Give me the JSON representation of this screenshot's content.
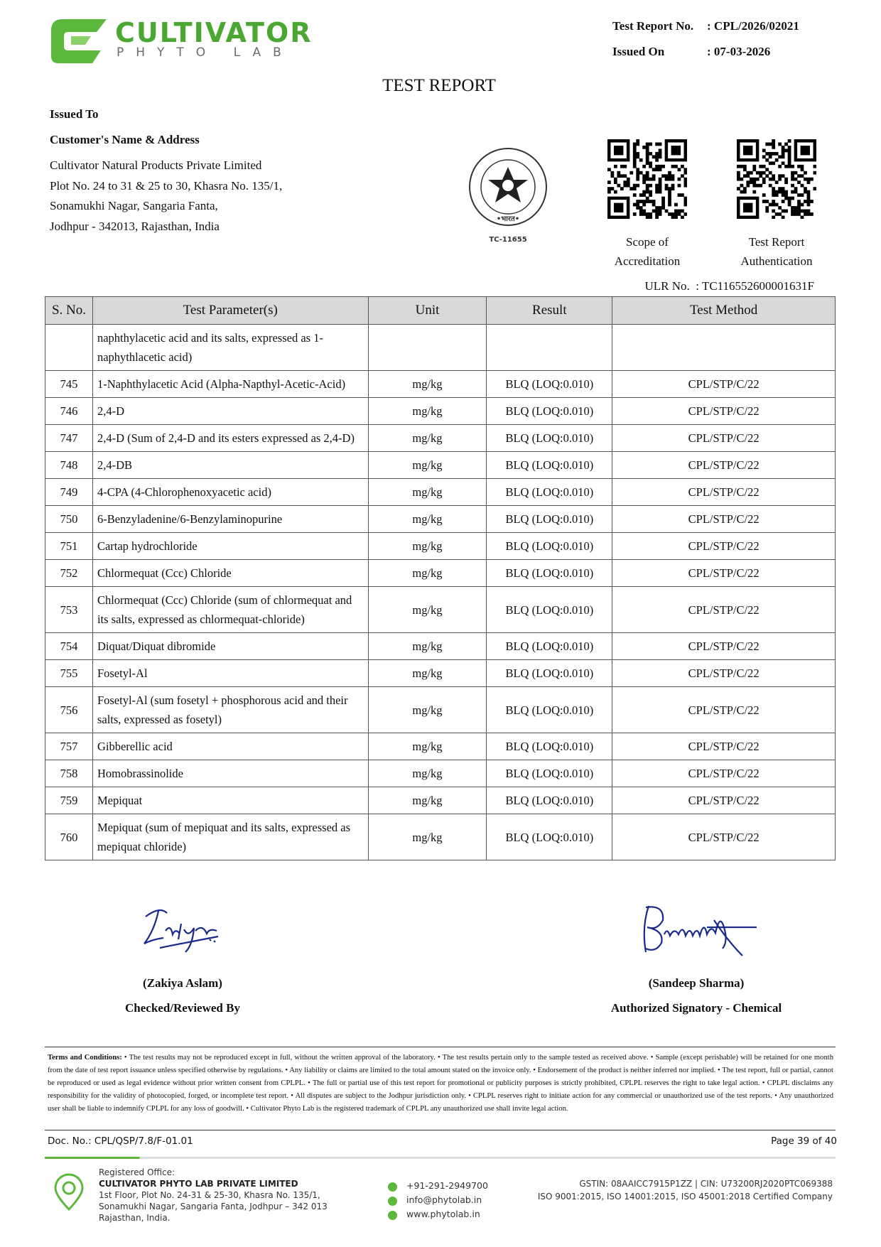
{
  "header": {
    "logo_main": "CULTIVATOR",
    "logo_sub": "PHYTO LAB",
    "report_no_label": "Test Report No.",
    "report_no": ": CPL/2026/02021",
    "issued_on_label": "Issued On",
    "issued_on": ": 07-03-2026"
  },
  "title": "TEST REPORT",
  "issued_to": {
    "label": "Issued To",
    "customer_label": "Customer's Name & Address",
    "lines": [
      "Cultivator Natural Products Private Limited",
      "Plot No. 24 to 31 & 25 to 30, Khasra No. 135/1,",
      "Sonamukhi Nagar, Sangaria Fanta,",
      "Jodhpur - 342013, Rajasthan, India"
    ]
  },
  "accreditation": {
    "emblem_code": "TC-11655",
    "emblem_word": "•भारत•",
    "qr_labels": [
      [
        "Scope of",
        "Accreditation"
      ],
      [
        "Test Report",
        "Authentication"
      ]
    ],
    "ulr": "ULR No.  : TC116552600001631F"
  },
  "table": {
    "headers": [
      "S. No.",
      "Test Parameter(s)",
      "Unit",
      "Result",
      "Test Method"
    ],
    "rows": [
      [
        null,
        "naphthylacetic acid and its salts, expressed as 1-naphythlacetic acid)",
        null,
        null,
        null
      ],
      [
        "745",
        "1-Naphthylacetic Acid (Alpha-Napthyl-Acetic-Acid)",
        "mg/kg",
        "BLQ (LOQ:0.010)",
        "CPL/STP/C/22"
      ],
      [
        "746",
        "2,4-D",
        "mg/kg",
        "BLQ (LOQ:0.010)",
        "CPL/STP/C/22"
      ],
      [
        "747",
        "2,4-D (Sum of 2,4-D and its esters expressed as 2,4-D)",
        "mg/kg",
        "BLQ (LOQ:0.010)",
        "CPL/STP/C/22"
      ],
      [
        "748",
        "2,4-DB",
        "mg/kg",
        "BLQ (LOQ:0.010)",
        "CPL/STP/C/22"
      ],
      [
        "749",
        "4-CPA (4-Chlorophenoxyacetic acid)",
        "mg/kg",
        "BLQ (LOQ:0.010)",
        "CPL/STP/C/22"
      ],
      [
        "750",
        "6-Benzyladenine/6-Benzylaminopurine",
        "mg/kg",
        "BLQ (LOQ:0.010)",
        "CPL/STP/C/22"
      ],
      [
        "751",
        "Cartap hydrochloride",
        "mg/kg",
        "BLQ (LOQ:0.010)",
        "CPL/STP/C/22"
      ],
      [
        "752",
        "Chlormequat (Ccc) Chloride",
        "mg/kg",
        "BLQ (LOQ:0.010)",
        "CPL/STP/C/22"
      ],
      [
        "753",
        "Chlormequat (Ccc) Chloride (sum of chlormequat and its salts, expressed as chlormequat-chloride)",
        "mg/kg",
        "BLQ (LOQ:0.010)",
        "CPL/STP/C/22"
      ],
      [
        "754",
        "Diquat/Diquat dibromide",
        "mg/kg",
        "BLQ (LOQ:0.010)",
        "CPL/STP/C/22"
      ],
      [
        "755",
        "Fosetyl-Al",
        "mg/kg",
        "BLQ (LOQ:0.010)",
        "CPL/STP/C/22"
      ],
      [
        "756",
        "Fosetyl-Al (sum fosetyl + phosphorous acid and their salts, expressed as fosetyl)",
        "mg/kg",
        "BLQ (LOQ:0.010)",
        "CPL/STP/C/22"
      ],
      [
        "757",
        "Gibberellic acid",
        "mg/kg",
        "BLQ (LOQ:0.010)",
        "CPL/STP/C/22"
      ],
      [
        "758",
        "Homobrassinolide",
        "mg/kg",
        "BLQ (LOQ:0.010)",
        "CPL/STP/C/22"
      ],
      [
        "759",
        "Mepiquat",
        "mg/kg",
        "BLQ (LOQ:0.010)",
        "CPL/STP/C/22"
      ],
      [
        "760",
        "Mepiquat (sum of mepiquat and its salts, expressed as mepiquat chloride)",
        "mg/kg",
        "BLQ (LOQ:0.010)",
        "CPL/STP/C/22"
      ]
    ]
  },
  "signatures": [
    {
      "name": "(Zakiya Aslam)",
      "role": "Checked/Reviewed By"
    },
    {
      "name": "(Sandeep Sharma)",
      "role": "Authorized Signatory - Chemical"
    }
  ],
  "terms": {
    "label": "Terms and Conditions:",
    "text": "• The test results may not be reproduced except in full, without the written approval of the laboratory. • The test results pertain only to the sample tested as received above. • Sample (except perishable) will be retained for one month from the date of test report issuance unless specified otherwise by regulations. • Any liability or claims are limited to the total amount stated on the invoice only. • Endorsement of the product is neither inferred nor implied. • The test report, full or partial, cannot be reproduced or used as legal evidence without prior written consent from CPLPL. • The full or partial use of this test report for promotional or publicity purposes is strictly prohibited, CPLPL reserves the right to take legal action. • CPLPL disclaims any responsibility for the validity of photocopied, forged, or incomplete test report. • All disputes are subject to the Jodhpur jurisdiction only. • CPLPL reserves right to initiate action for any commercial or unauthorized use of the test reports. • Any unauthorized user shall be liable to indemnify CPLPL for any loss of goodwill. • Cultivator Phyto Lab is the registered trademark of CPLPL any unauthorized use shall invite legal action."
  },
  "doc_footer": {
    "doc_no": "Doc. No.: CPL/QSP/7.8/F-01.01",
    "page": "Page 39 of 40"
  },
  "footer": {
    "registered": "Registered Office:",
    "company": "CULTIVATOR PHYTO LAB PRIVATE LIMITED",
    "address": [
      "1st Floor, Plot No. 24-31 & 25-30, Khasra No. 135/1,",
      "Sonamukhi Nagar, Sangaria Fanta, Jodhpur – 342 013",
      "Rajasthan, India."
    ],
    "phone": "+91-291-2949700",
    "email": "info@phytolab.in",
    "web": "www.phytolab.in",
    "gstin": "GSTIN: 08AAICC7915P1ZZ | CIN: U73200RJ2020PTC069388",
    "iso": "ISO 9001:2015, ISO 14001:2015, ISO 45001:2018 Certified Company"
  }
}
